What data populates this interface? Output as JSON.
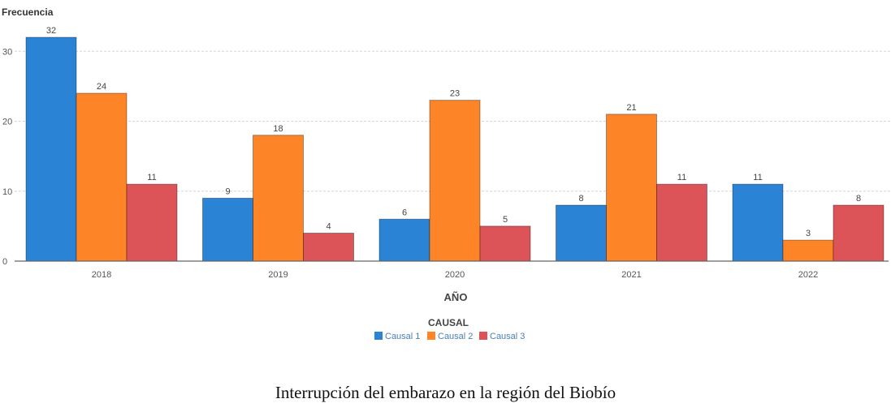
{
  "chart_data": {
    "type": "bar",
    "ylabel": "Frecuencia",
    "xlabel": "AÑO",
    "categories": [
      "2018",
      "2019",
      "2020",
      "2021",
      "2022"
    ],
    "yticks": [
      0,
      10,
      20,
      30
    ],
    "ylim": [
      0,
      32
    ],
    "grid": true,
    "legend": {
      "title": "CAUSAL",
      "position": "bottom-center"
    },
    "series": [
      {
        "name": "Causal 1",
        "color": "#2b83d6",
        "values": [
          32,
          9,
          6,
          8,
          11
        ]
      },
      {
        "name": "Causal 2",
        "color": "#fd8427",
        "values": [
          24,
          18,
          23,
          21,
          3
        ]
      },
      {
        "name": "Causal 3",
        "color": "#dc5358",
        "values": [
          11,
          4,
          5,
          11,
          8
        ]
      }
    ]
  },
  "caption": "Interrupción del embarazo en la región del Biobío"
}
